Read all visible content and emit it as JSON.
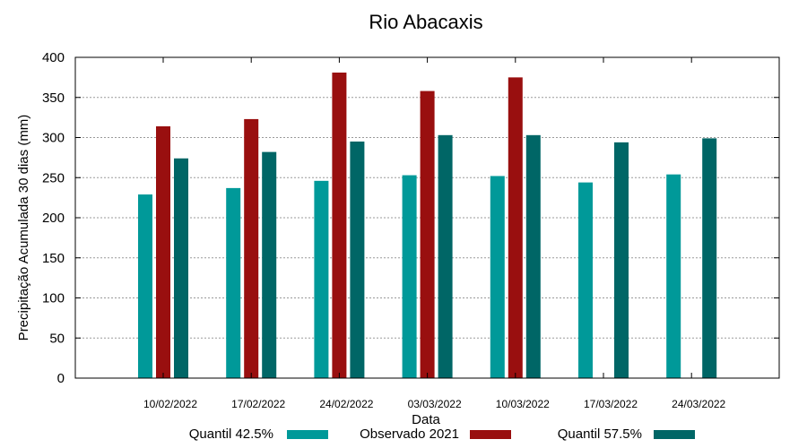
{
  "chart_data": {
    "type": "bar",
    "title": "Rio Abacaxis",
    "xlabel": "Data",
    "ylabel": "Precipitação Acumulada 30 dias (mm)",
    "ylim": [
      0,
      400
    ],
    "yticks": [
      0,
      50,
      100,
      150,
      200,
      250,
      300,
      350,
      400
    ],
    "grid": true,
    "legend_position": "bottom",
    "categories": [
      "10/02/2022",
      "17/02/2022",
      "24/02/2022",
      "03/03/2022",
      "10/03/2022",
      "17/03/2022",
      "24/03/2022"
    ],
    "series": [
      {
        "name": "Quantil 42.5%",
        "color": "#009999",
        "values": [
          229,
          237,
          246,
          253,
          252,
          244,
          254
        ]
      },
      {
        "name": "Observado 2021",
        "color": "#990f0f",
        "values": [
          314,
          323,
          381,
          358,
          375,
          null,
          null
        ]
      },
      {
        "name": "Quantil 57.5%",
        "color": "#006666",
        "values": [
          274,
          282,
          295,
          303,
          303,
          294,
          299
        ]
      }
    ]
  }
}
